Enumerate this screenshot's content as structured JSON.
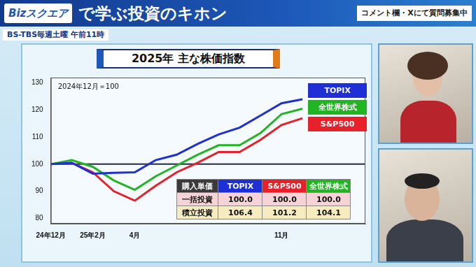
{
  "header": {
    "logo": "Bizスクエア",
    "title": "で学ぶ投資のキホン",
    "schedule": "BS-TBS毎週土曜 午前11時",
    "notice": "コメント欄・Xにて質問募集中"
  },
  "chart_data": {
    "type": "line",
    "title": "2025年 主な株価指数",
    "annotation": "2024年12月＝100",
    "categories": [
      "24年12月",
      null,
      "25年2月",
      null,
      "4月",
      null,
      null,
      null,
      null,
      null,
      null,
      "11月",
      null,
      null,
      null,
      null
    ],
    "series": [
      {
        "name": "TOPIX",
        "color": "#1f2fd6",
        "values": [
          100,
          100.5,
          96.5,
          96.8,
          97.0,
          101.5,
          103.5,
          107.5,
          111,
          113.5,
          118,
          122.5,
          124,
          null,
          null,
          null
        ]
      },
      {
        "name": "全世界株式",
        "color": "#22b422",
        "values": [
          100,
          101.5,
          99,
          94,
          90.5,
          95.5,
          99.5,
          103.5,
          107,
          107,
          111.5,
          118.5,
          120.5,
          null,
          null,
          null
        ]
      },
      {
        "name": "S&P500",
        "color": "#e8202a",
        "values": [
          100,
          100.5,
          97,
          90,
          86.5,
          92,
          97,
          100.5,
          104.5,
          104.5,
          109,
          114.5,
          117,
          null,
          null,
          null
        ]
      }
    ],
    "ylim": [
      78,
      132
    ],
    "yticks": [
      80,
      90,
      100,
      110,
      120,
      130
    ],
    "reference_line": 100,
    "grid": false,
    "legend": "top-right"
  },
  "table": {
    "header": [
      "購入単価",
      "TOPIX",
      "S&P500",
      "全世界株式"
    ],
    "rows": [
      [
        "一括投資",
        "100.0",
        "100.0",
        "100.0"
      ],
      [
        "積立投資",
        "106.4",
        "101.2",
        "104.1"
      ]
    ]
  }
}
